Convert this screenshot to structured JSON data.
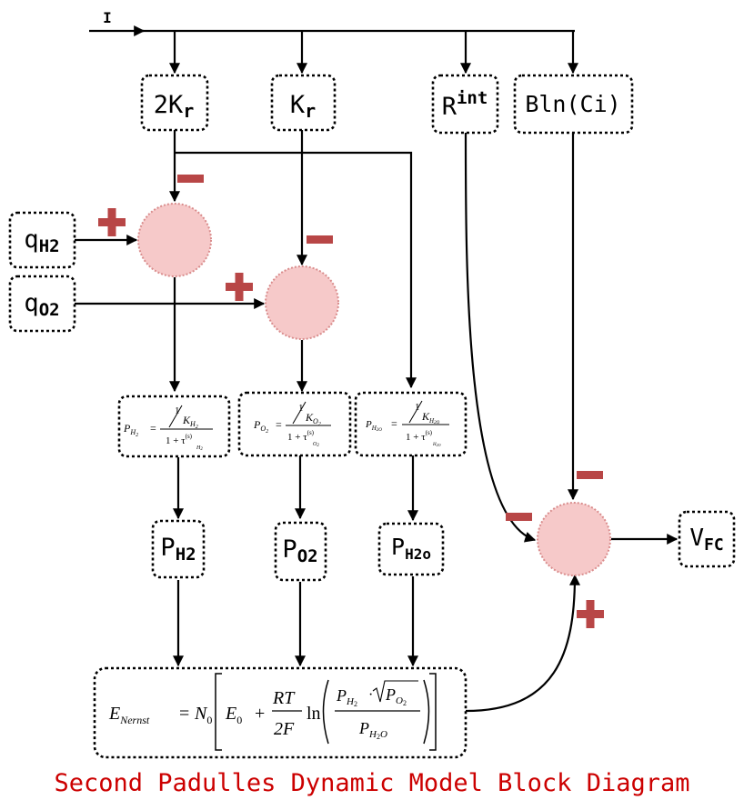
{
  "input_label": "I",
  "blocks": {
    "two_kr": {
      "base": "2K",
      "sub": "r"
    },
    "kr": {
      "base": "K",
      "sub": "r"
    },
    "rint": {
      "base": "R",
      "sup": "int"
    },
    "bln": {
      "text": "Bln(Ci)"
    },
    "qh2": {
      "base": "q",
      "sub": "H2"
    },
    "qo2": {
      "base": "q",
      "sub": "O2"
    },
    "ph2_out": {
      "base": "P",
      "sub": "H2"
    },
    "po2_out": {
      "base": "P",
      "sub": "O2"
    },
    "ph2o_out": {
      "base": "P",
      "sub": "H2o"
    },
    "vfc": {
      "base": "V",
      "sub": "FC"
    }
  },
  "transfer_functions": {
    "h2": {
      "lhs": "P",
      "lhs_sub": "H",
      "lhs_subsub": "2",
      "num": "1",
      "den_k": "K",
      "den_k_sub": "H",
      "den_k_subsub": "2",
      "den": "1 + τ",
      "tau_sup": "(s)",
      "tau_sub": "H",
      "tau_subsub": "2"
    },
    "o2": {
      "lhs": "P",
      "lhs_sub": "O",
      "lhs_subsub": "2",
      "num": "1",
      "den_k": "K",
      "den_k_sub": "O",
      "den_k_subsub": "2",
      "den": "1 + τ",
      "tau_sup": "(s)",
      "tau_sub": "O",
      "tau_subsub": "2"
    },
    "h2o": {
      "lhs": "P",
      "lhs_sub": "H",
      "lhs_subsub": "2O",
      "num": "1",
      "den_k": "K",
      "den_k_sub": "H",
      "den_k_subsub": "2O",
      "den": "1 + τ",
      "tau_sup": "(s)",
      "tau_sub": "H",
      "tau_subsub": "2O"
    }
  },
  "nernst": {
    "lhs": "E",
    "lhs_sub": "Nernst",
    "eq": "=",
    "n": "N",
    "n_sub": "0",
    "e": "E",
    "e_sub": "0",
    "plus": "+",
    "rt": "RT",
    "two_f": "2F",
    "ln": "ln",
    "num_p": "P",
    "num_p_sub": "H",
    "num_p_subsub": "2",
    "dot": "·",
    "sqrt_p": "P",
    "sqrt_p_sub": "O",
    "sqrt_p_subsub": "2",
    "den_p": "P",
    "den_p_sub": "H",
    "den_p_subsub": "2",
    "den_p_o": "O"
  },
  "signs": {
    "plus": "+",
    "minus": "−"
  },
  "caption": "Second Padulles Dynamic Model Block Diagram",
  "colors": {
    "sum_fill": "#f6c9c9",
    "sign": "#b84646",
    "caption": "#cc0000",
    "line": "#000000"
  }
}
